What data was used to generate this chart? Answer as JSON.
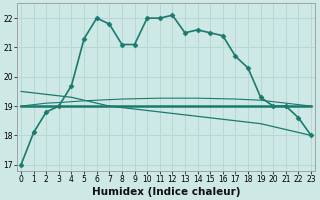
{
  "xlabel": "Humidex (Indice chaleur)",
  "x": [
    0,
    1,
    2,
    3,
    4,
    5,
    6,
    7,
    8,
    9,
    10,
    11,
    12,
    13,
    14,
    15,
    16,
    17,
    18,
    19,
    20,
    21,
    22,
    23
  ],
  "series": [
    {
      "name": "main_curve",
      "y": [
        17.0,
        18.1,
        18.8,
        19.0,
        19.7,
        21.3,
        22.0,
        21.8,
        21.1,
        21.1,
        22.0,
        22.0,
        22.1,
        21.5,
        21.6,
        21.5,
        21.4,
        20.7,
        20.3,
        19.3,
        19.0,
        19.0,
        18.6,
        18.0
      ],
      "color": "#1a7a6e",
      "marker": "D",
      "markersize": 2.5,
      "linewidth": 1.2,
      "linestyle": "-"
    },
    {
      "name": "flat_line",
      "y": [
        19.0,
        19.0,
        19.0,
        19.0,
        19.0,
        19.0,
        19.0,
        19.0,
        19.0,
        19.0,
        19.0,
        19.0,
        19.0,
        19.0,
        19.0,
        19.0,
        19.0,
        19.0,
        19.0,
        19.0,
        19.0,
        19.0,
        19.0,
        19.0
      ],
      "color": "#1a7a6e",
      "marker": null,
      "markersize": 0,
      "linewidth": 1.8,
      "linestyle": "-"
    },
    {
      "name": "declining_line",
      "y": [
        19.5,
        19.45,
        19.4,
        19.35,
        19.3,
        19.2,
        19.1,
        19.0,
        18.95,
        18.9,
        18.85,
        18.8,
        18.75,
        18.7,
        18.65,
        18.6,
        18.55,
        18.5,
        18.45,
        18.4,
        18.3,
        18.2,
        18.1,
        18.0
      ],
      "color": "#1a7a6e",
      "marker": null,
      "markersize": 0,
      "linewidth": 0.9,
      "linestyle": "-"
    },
    {
      "name": "slight_curve",
      "y": [
        19.0,
        19.05,
        19.1,
        19.12,
        19.15,
        19.18,
        19.2,
        19.22,
        19.24,
        19.25,
        19.26,
        19.27,
        19.27,
        19.27,
        19.27,
        19.26,
        19.25,
        19.24,
        19.22,
        19.2,
        19.15,
        19.1,
        19.05,
        19.0
      ],
      "color": "#1a7a6e",
      "marker": null,
      "markersize": 0,
      "linewidth": 0.8,
      "linestyle": "-"
    }
  ],
  "ylim": [
    16.8,
    22.5
  ],
  "yticks": [
    17,
    18,
    19,
    20,
    21,
    22
  ],
  "xlim": [
    -0.3,
    23.3
  ],
  "xticks": [
    0,
    1,
    2,
    3,
    4,
    5,
    6,
    7,
    8,
    9,
    10,
    11,
    12,
    13,
    14,
    15,
    16,
    17,
    18,
    19,
    20,
    21,
    22,
    23
  ],
  "bg_color": "#cde8e5",
  "grid_color": "#b8d8d5",
  "line_color": "#1a7a6e",
  "tick_fontsize": 5.5,
  "label_fontsize": 7.5
}
